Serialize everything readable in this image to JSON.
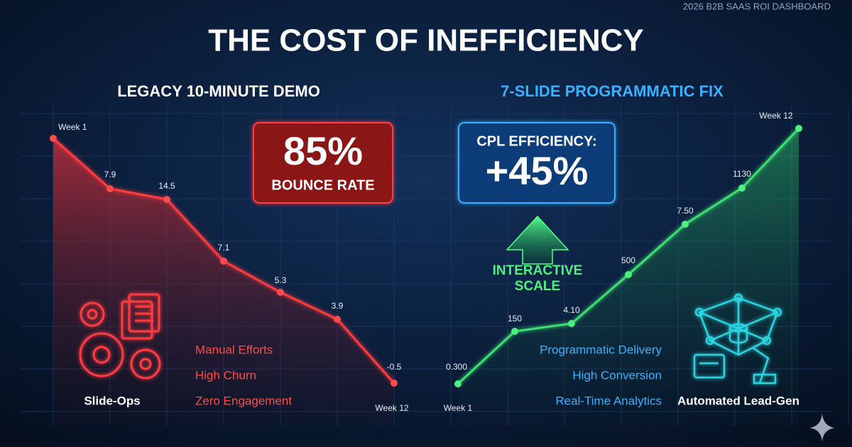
{
  "header": {
    "tag": "2026 B2B SAAS ROI DASHBOARD",
    "title": "THE COST OF INEFFICIENCY"
  },
  "left": {
    "heading": "LEGACY 10-MINUTE DEMO",
    "callout": {
      "value": "85%",
      "label": "BOUNCE RATE"
    },
    "point_labels": [
      "Week 1",
      "7.9",
      "14.5",
      "7.1",
      "5.3",
      "3.9",
      "-0.5"
    ],
    "end_label": "Week 12",
    "icon_label": "Slide-Ops",
    "bullets": [
      "Manual Efforts",
      "High Churn",
      "Zero Engagement"
    ]
  },
  "right": {
    "heading": "7-SLIDE PROGRAMMATIC FIX",
    "callout": {
      "label": "CPL EFFICIENCY:",
      "value": "+45%"
    },
    "arrow_label": [
      "INTERACTIVE",
      "SCALE"
    ],
    "start_label": "Week 1",
    "point_labels": [
      "0.300",
      "150",
      "4.10",
      "500",
      "7.50",
      "1130",
      "Week 12"
    ],
    "bullets": [
      "Programmatic Delivery",
      "High Conversion",
      "Real-Time Analytics"
    ],
    "icon_label": "Automated Lead-Gen"
  }
}
